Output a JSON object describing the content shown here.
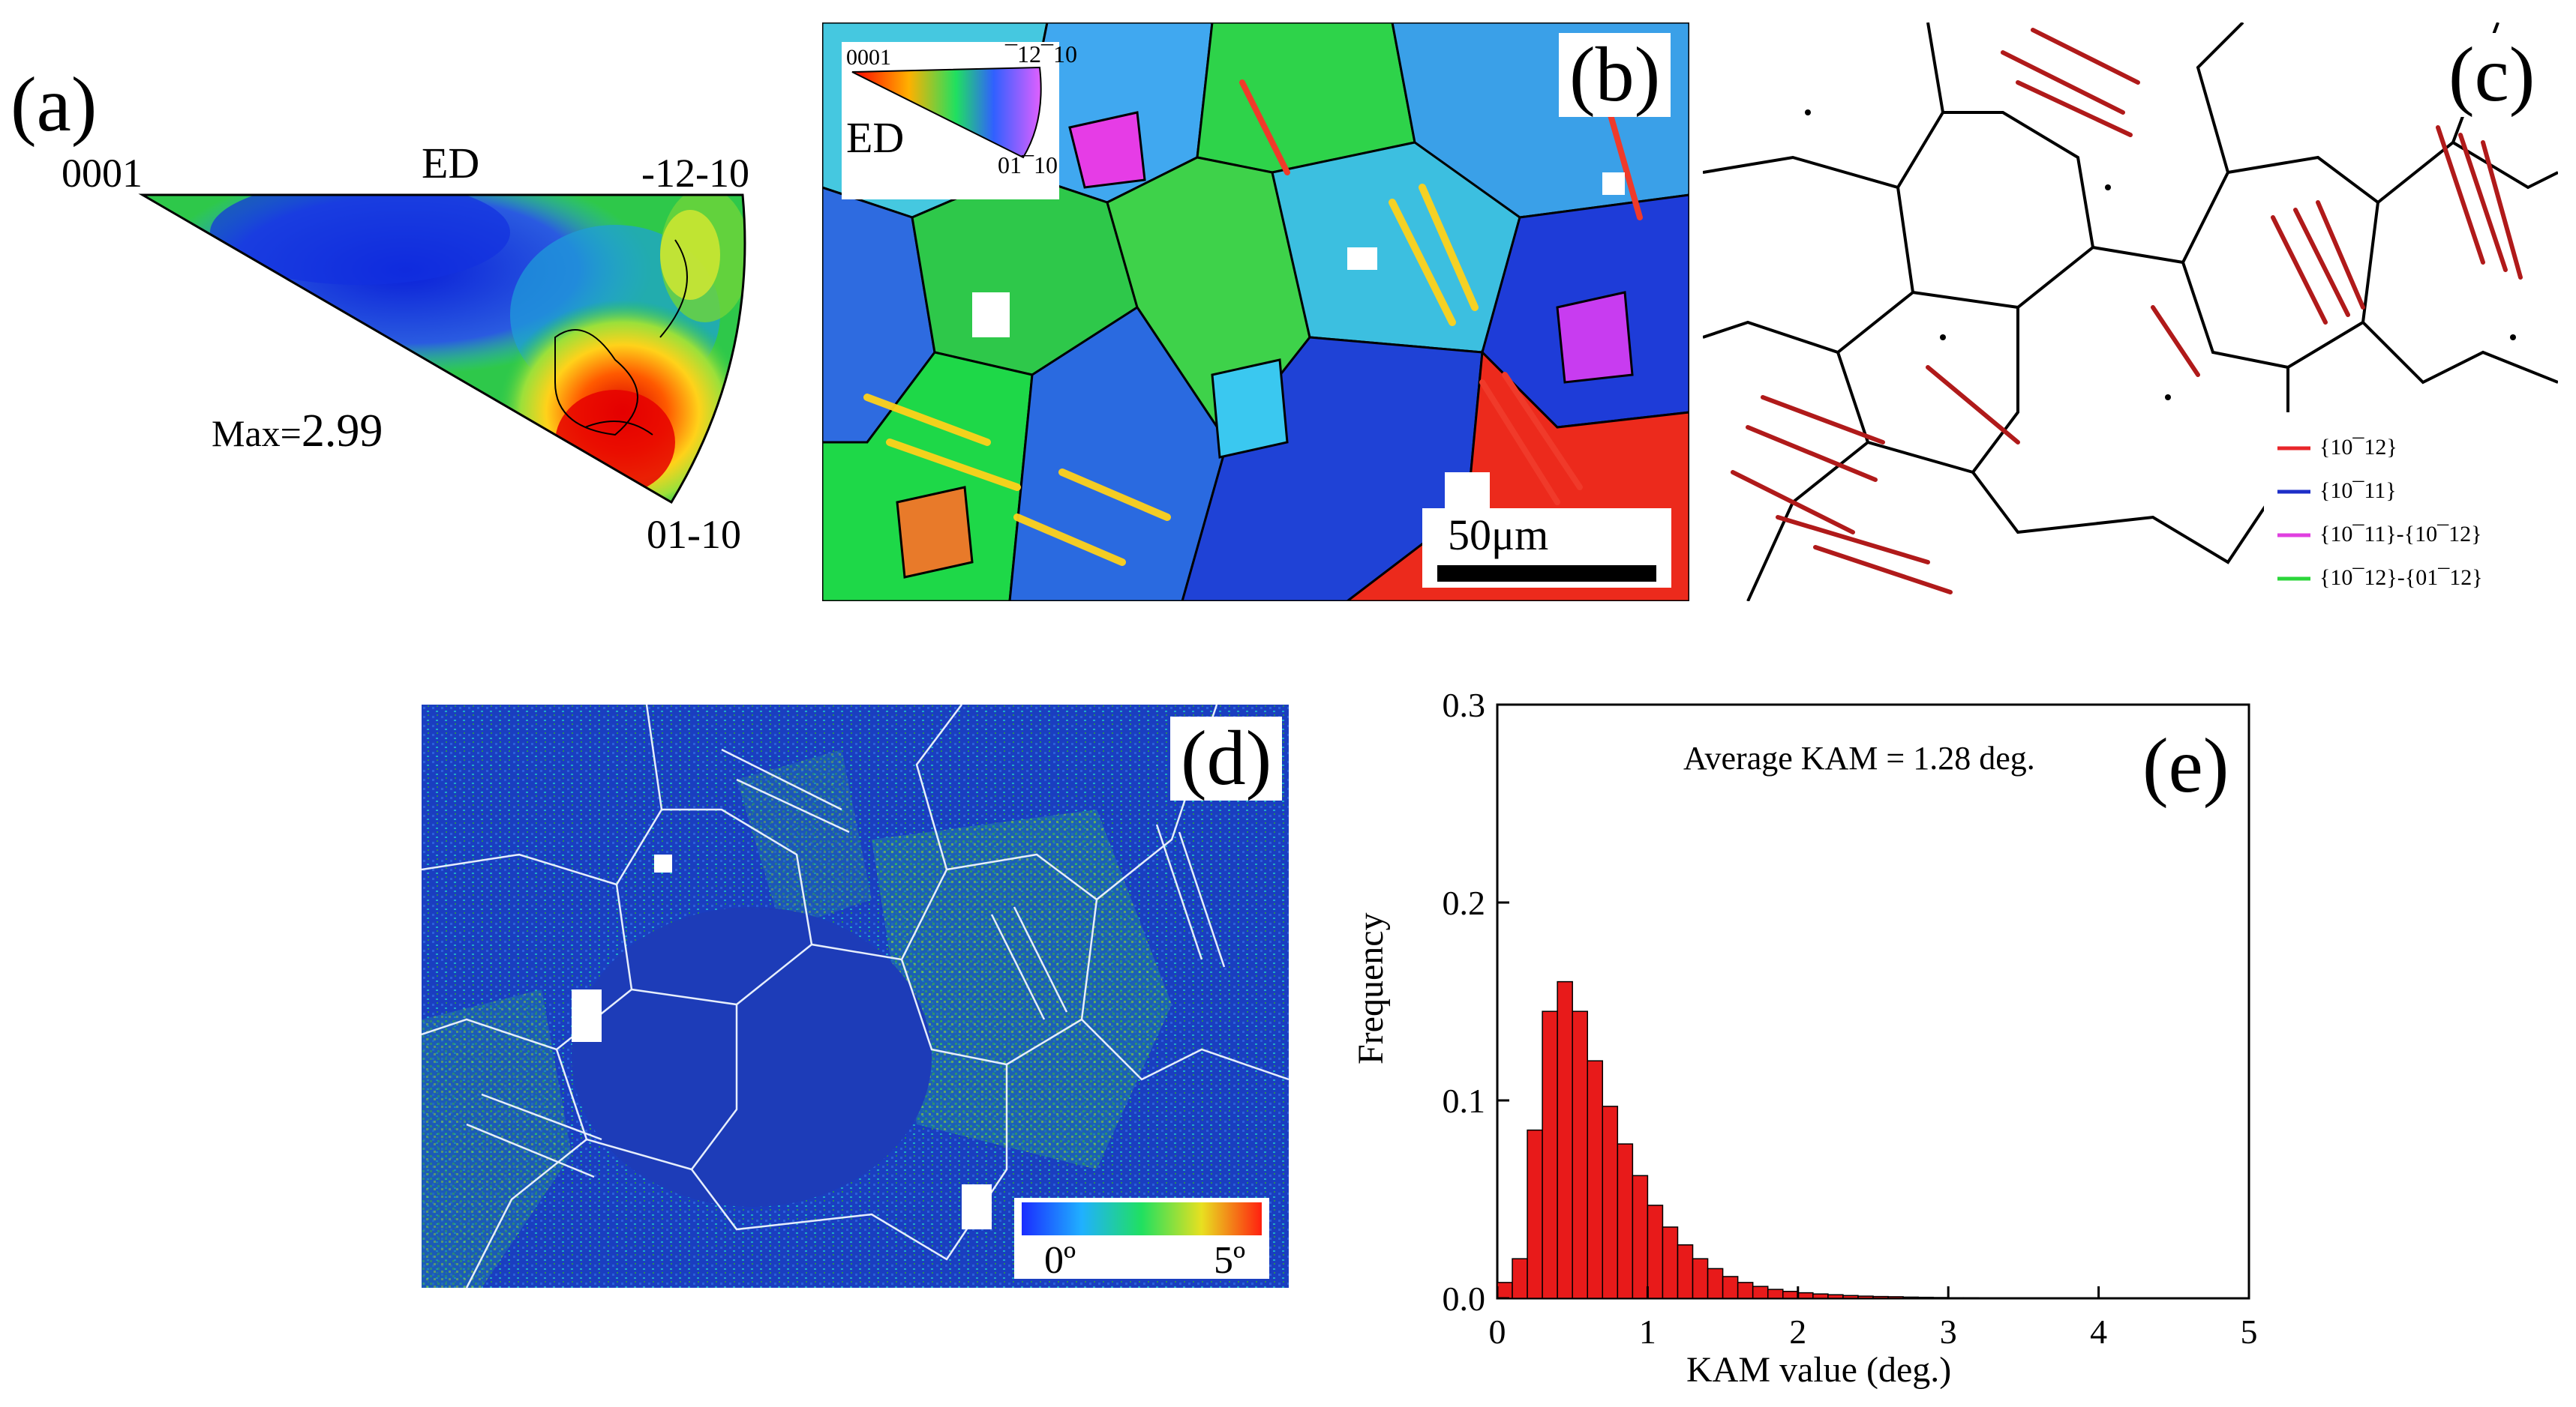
{
  "panel_a": {
    "label": "(a)",
    "pole_0001": "0001",
    "pole_1210": "-12-10",
    "pole_0110": "01-10",
    "direction": "ED",
    "max_text": "Max=",
    "max_value": "2.99"
  },
  "panel_b": {
    "label": "(b)",
    "legend_0001": "0001",
    "legend_1210": "¯12¯10",
    "legend_0110": "01¯10",
    "legend_dir": "ED",
    "scale_bar": "50μm"
  },
  "panel_c": {
    "label": "(c)",
    "legend": [
      {
        "text": "{10¯12}",
        "color": "#e8262a"
      },
      {
        "text": "{10¯11}",
        "color": "#1e2fc8"
      },
      {
        "text": "{10¯11}-{10¯12}",
        "color": "#e040e0"
      },
      {
        "text": "{10¯12}-{01¯12}",
        "color": "#2bd63a"
      }
    ]
  },
  "panel_d": {
    "label": "(d)",
    "colorbar_min": "0º",
    "colorbar_max": "5º"
  },
  "panel_e": {
    "label": "(e)",
    "annotation": "Average KAM = 1.28 deg.",
    "chart_data": {
      "type": "bar",
      "xlabel": "KAM value (deg.)",
      "ylabel": "Frequency",
      "xlim": [
        0,
        5
      ],
      "ylim": [
        0,
        0.3
      ],
      "x_ticks": [
        "0",
        "1",
        "2",
        "3",
        "4",
        "5"
      ],
      "y_ticks": [
        "0.0",
        "0.1",
        "0.2",
        "0.3"
      ],
      "bar_width": 0.1,
      "x": [
        0.05,
        0.15,
        0.25,
        0.35,
        0.45,
        0.55,
        0.65,
        0.75,
        0.85,
        0.95,
        1.05,
        1.15,
        1.25,
        1.35,
        1.45,
        1.55,
        1.65,
        1.75,
        1.85,
        1.95,
        2.05,
        2.15,
        2.25,
        2.35,
        2.45,
        2.55,
        2.65,
        2.75,
        2.85,
        2.95,
        3.05,
        3.15,
        3.25,
        3.35,
        3.45,
        3.55,
        3.65,
        3.75,
        3.85
      ],
      "values": [
        0.008,
        0.02,
        0.085,
        0.145,
        0.16,
        0.145,
        0.12,
        0.097,
        0.078,
        0.062,
        0.047,
        0.036,
        0.027,
        0.02,
        0.015,
        0.011,
        0.008,
        0.006,
        0.0045,
        0.0035,
        0.0028,
        0.0022,
        0.0018,
        0.0014,
        0.0011,
        0.0009,
        0.0008,
        0.0006,
        0.0005,
        0.0004,
        0.0003,
        0.0003,
        0.0002,
        0.0002,
        0.0002,
        0.0001,
        0.0001,
        0.0001,
        0.0001
      ],
      "bar_color": "#e81a1a"
    }
  }
}
